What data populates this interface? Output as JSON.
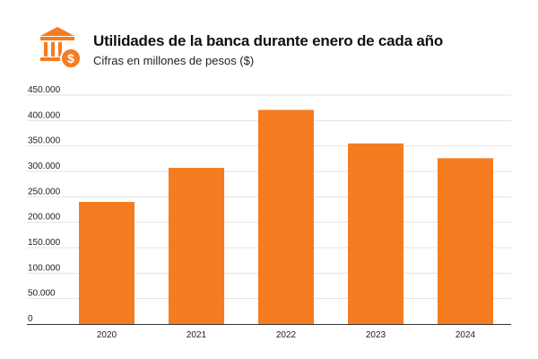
{
  "header": {
    "icon": "bank-dollar-icon",
    "title": "Utilidades de la banca durante enero de cada año",
    "subtitle": "Cifras en millones de pesos ($)"
  },
  "colors": {
    "accent": "#f57c20",
    "gridline": "#e3e3e3",
    "axis": "#333333"
  },
  "chart_data": {
    "type": "bar",
    "title": "Utilidades de la banca durante enero de cada año",
    "subtitle": "Cifras en millones de pesos ($)",
    "xlabel": "",
    "ylabel": "",
    "categories": [
      "2020",
      "2021",
      "2022",
      "2023",
      "2024"
    ],
    "values": [
      240000,
      307000,
      421000,
      355000,
      326000
    ],
    "ylim": [
      0,
      450000
    ],
    "yticks": [
      0,
      50000,
      100000,
      150000,
      200000,
      250000,
      300000,
      350000,
      400000,
      450000
    ],
    "ytick_labels": [
      "0",
      "50.000",
      "100.000",
      "150.000",
      "200.000",
      "250.000",
      "300.000",
      "350.000",
      "400.000",
      "450.000"
    ],
    "grid": true,
    "legend": "none"
  }
}
